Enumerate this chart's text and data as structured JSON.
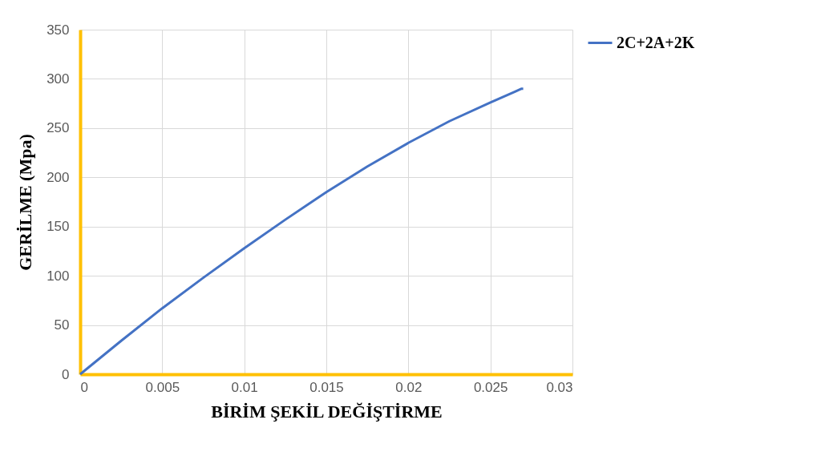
{
  "chart_data": {
    "type": "line",
    "xlabel": "BİRİM ŞEKİL DEĞİŞTİRME",
    "ylabel": "GERİLME (Mpa)",
    "xlim": [
      0,
      0.03
    ],
    "xticks": [
      0,
      0.005,
      0.01,
      0.015,
      0.02,
      0.025,
      0.03
    ],
    "ylim": [
      0,
      350
    ],
    "yticks": [
      0,
      50,
      100,
      150,
      200,
      250,
      300,
      350
    ],
    "grid": true,
    "legend": "right",
    "marker": "none",
    "line_style": "solid",
    "series": [
      {
        "name": "2C+2A+2K",
        "color": "#4472c4",
        "x": [
          0,
          0.0025,
          0.005,
          0.0075,
          0.01,
          0.0125,
          0.015,
          0.0175,
          0.02,
          0.0225,
          0.025,
          0.0265,
          0.0269,
          0.027
        ],
        "values": [
          0,
          34,
          67,
          98,
          128,
          157,
          185,
          211,
          235,
          257,
          276,
          287,
          290,
          290
        ]
      }
    ]
  }
}
